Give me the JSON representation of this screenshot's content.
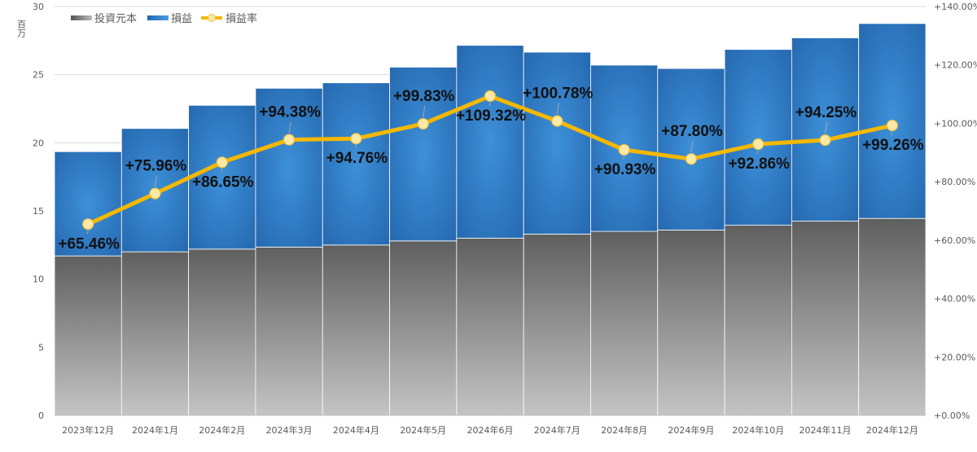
{
  "chart_data": {
    "type": "bar",
    "stacked": true,
    "categories": [
      "2023年12月",
      "2024年1月",
      "2024年2月",
      "2024年3月",
      "2024年4月",
      "2024年5月",
      "2024年6月",
      "2024年7月",
      "2024年8月",
      "2024年9月",
      "2024年10月",
      "2024年11月",
      "2024年12月"
    ],
    "series": [
      {
        "name": "投資元本",
        "type": "bar",
        "axis": "left",
        "color": "#7a7a7a",
        "values": [
          11.7,
          12.0,
          12.2,
          12.35,
          12.5,
          12.8,
          13.0,
          13.3,
          13.5,
          13.6,
          13.95,
          14.25,
          14.45
        ]
      },
      {
        "name": "損益",
        "type": "bar",
        "axis": "left",
        "color": "#2f7fc8",
        "values": [
          7.65,
          9.05,
          10.55,
          11.65,
          11.9,
          12.75,
          14.15,
          13.35,
          12.2,
          11.85,
          12.9,
          13.45,
          14.3
        ]
      },
      {
        "name": "損益率",
        "type": "line",
        "axis": "right",
        "color": "#f5b800",
        "values": [
          65.46,
          75.96,
          86.65,
          94.38,
          94.76,
          99.83,
          109.32,
          100.78,
          90.93,
          87.8,
          92.86,
          94.25,
          99.26
        ],
        "labels": [
          "+65.46%",
          "+75.96%",
          "+86.65%",
          "+94.38%",
          "+94.76%",
          "+99.83%",
          "+109.32%",
          "+100.78%",
          "+90.93%",
          "+87.80%",
          "+92.86%",
          "+94.25%",
          "+99.26%"
        ]
      }
    ],
    "y_left": {
      "unit_label": "百万",
      "ylim": [
        0,
        30
      ],
      "ticks": [
        "0",
        "5",
        "10",
        "15",
        "20",
        "25",
        "30"
      ]
    },
    "y_right": {
      "ylim": [
        0,
        140
      ],
      "ticks": [
        "+0.00%",
        "+20.00%",
        "+40.00%",
        "+60.00%",
        "+80.00%",
        "+100.00%",
        "+120.00%",
        "+140.00%"
      ]
    },
    "legend": {
      "position": "top-left"
    },
    "grid": true
  }
}
